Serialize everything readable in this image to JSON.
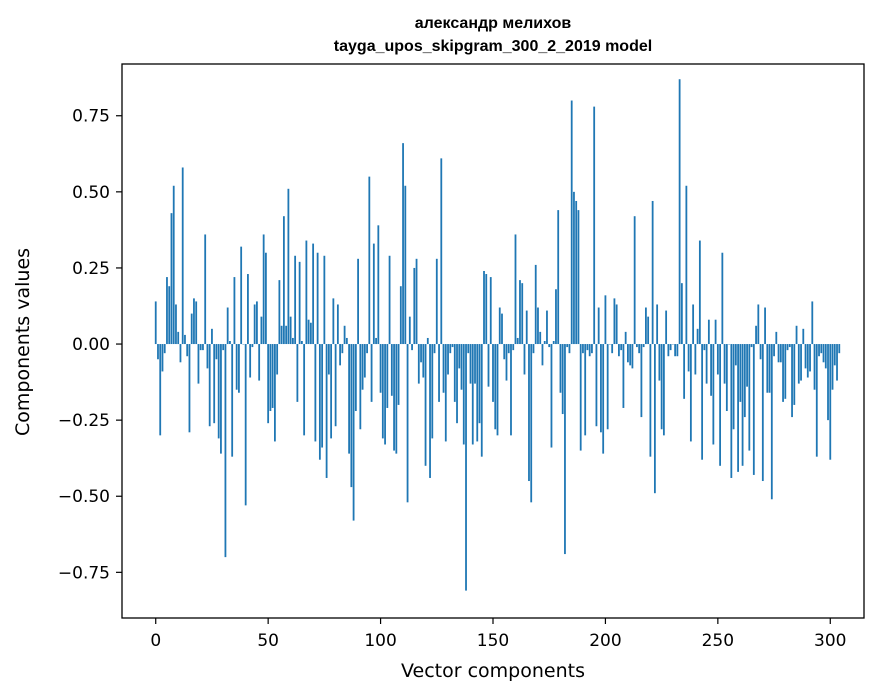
{
  "colors": {
    "bar": "#1f77b4",
    "axes": "#000000",
    "background": "#ffffff"
  },
  "chart_data": {
    "type": "bar",
    "title_line1": "александр мелихов",
    "title_line2": "tayga_upos_skipgram_300_2_2019 model",
    "xlabel": "Vector components",
    "ylabel": "Components values",
    "xlim": [
      -15,
      315
    ],
    "ylim": [
      -0.9,
      0.92
    ],
    "xticks": [
      0,
      50,
      100,
      150,
      200,
      250,
      300
    ],
    "yticks": [
      -0.75,
      -0.5,
      -0.25,
      0.0,
      0.25,
      0.5,
      0.75
    ],
    "xtick_labels": [
      "0",
      "50",
      "100",
      "150",
      "200",
      "250",
      "300"
    ],
    "ytick_labels": [
      "−0.75",
      "−0.50",
      "−0.25",
      "0.00",
      "0.25",
      "0.50",
      "0.75"
    ],
    "grid": false,
    "bar_width": 0.8,
    "values": [
      0.14,
      -0.05,
      -0.3,
      -0.09,
      -0.03,
      0.22,
      0.19,
      0.43,
      0.52,
      0.13,
      0.04,
      -0.06,
      0.58,
      0.03,
      -0.04,
      -0.29,
      0.1,
      0.15,
      0.14,
      -0.13,
      -0.02,
      -0.02,
      0.36,
      -0.08,
      -0.27,
      0.05,
      -0.26,
      -0.05,
      -0.31,
      -0.36,
      -0.02,
      -0.7,
      0.12,
      0.01,
      -0.37,
      0.22,
      -0.15,
      -0.16,
      0.32,
      0.0,
      -0.53,
      0.23,
      -0.11,
      -0.01,
      0.13,
      0.14,
      -0.12,
      0.09,
      0.36,
      0.3,
      -0.26,
      -0.22,
      -0.21,
      -0.32,
      -0.1,
      0.21,
      0.06,
      0.42,
      0.06,
      0.51,
      0.09,
      0.02,
      0.29,
      -0.19,
      0.27,
      0.01,
      -0.3,
      0.34,
      0.08,
      0.07,
      0.33,
      -0.32,
      0.3,
      -0.38,
      -0.34,
      0.29,
      -0.44,
      -0.1,
      -0.31,
      0.15,
      -0.27,
      0.13,
      -0.07,
      -0.03,
      0.06,
      0.02,
      -0.36,
      -0.47,
      -0.58,
      -0.22,
      0.28,
      -0.28,
      -0.15,
      -0.11,
      -0.03,
      0.55,
      -0.19,
      0.33,
      0.02,
      0.39,
      -0.16,
      -0.31,
      -0.33,
      -0.21,
      0.29,
      -0.17,
      -0.35,
      -0.36,
      -0.2,
      0.19,
      0.66,
      0.52,
      -0.52,
      0.09,
      -0.02,
      0.25,
      0.28,
      -0.13,
      -0.06,
      -0.11,
      -0.4,
      0.02,
      -0.44,
      -0.31,
      -0.03,
      0.28,
      -0.19,
      0.61,
      -0.16,
      -0.32,
      -0.1,
      -0.03,
      -0.01,
      -0.19,
      -0.26,
      -0.08,
      -0.15,
      -0.33,
      -0.81,
      -0.03,
      -0.13,
      -0.33,
      -0.13,
      -0.32,
      -0.26,
      -0.37,
      0.24,
      0.23,
      -0.14,
      0.22,
      -0.19,
      -0.28,
      -0.3,
      0.12,
      0.1,
      -0.05,
      -0.12,
      -0.03,
      -0.3,
      -0.02,
      0.36,
      0.02,
      0.21,
      0.2,
      -0.1,
      0.11,
      -0.45,
      -0.52,
      -0.03,
      0.26,
      0.12,
      0.04,
      -0.07,
      0.01,
      0.11,
      -0.01,
      -0.34,
      0.01,
      0.18,
      0.44,
      -0.16,
      -0.23,
      -0.69,
      -0.01,
      -0.03,
      0.8,
      0.5,
      0.47,
      0.44,
      -0.35,
      -0.03,
      -0.3,
      -0.02,
      -0.04,
      -0.03,
      0.78,
      -0.27,
      0.12,
      -0.29,
      -0.36,
      0.16,
      -0.28,
      0.0,
      -0.03,
      0.15,
      0.13,
      -0.04,
      -0.02,
      -0.21,
      0.04,
      -0.06,
      -0.07,
      -0.08,
      0.42,
      -0.01,
      -0.03,
      -0.24,
      -0.01,
      0.12,
      0.09,
      -0.37,
      0.47,
      -0.49,
      0.13,
      -0.12,
      -0.28,
      -0.3,
      0.11,
      -0.04,
      -0.02,
      0.0,
      -0.04,
      -0.04,
      0.87,
      0.2,
      -0.18,
      0.52,
      -0.09,
      -0.32,
      0.13,
      -0.1,
      0.05,
      0.34,
      -0.38,
      -0.02,
      -0.13,
      0.08,
      -0.17,
      -0.33,
      0.08,
      -0.1,
      -0.4,
      0.3,
      -0.13,
      -0.22,
      0.0,
      -0.44,
      -0.28,
      -0.07,
      -0.42,
      -0.19,
      -0.4,
      -0.24,
      -0.14,
      -0.35,
      -0.01,
      -0.43,
      0.06,
      0.13,
      -0.05,
      -0.45,
      0.12,
      -0.16,
      -0.16,
      -0.51,
      -0.04,
      0.04,
      -0.06,
      -0.06,
      -0.19,
      -0.18,
      -0.02,
      -0.01,
      -0.24,
      -0.2,
      0.06,
      -0.13,
      -0.12,
      0.05,
      -0.08,
      -0.11,
      -0.09,
      0.14,
      -0.15,
      -0.37,
      -0.04,
      -0.03,
      -0.06,
      -0.08,
      -0.25,
      -0.38,
      -0.15,
      -0.07,
      -0.12,
      -0.03
    ]
  }
}
